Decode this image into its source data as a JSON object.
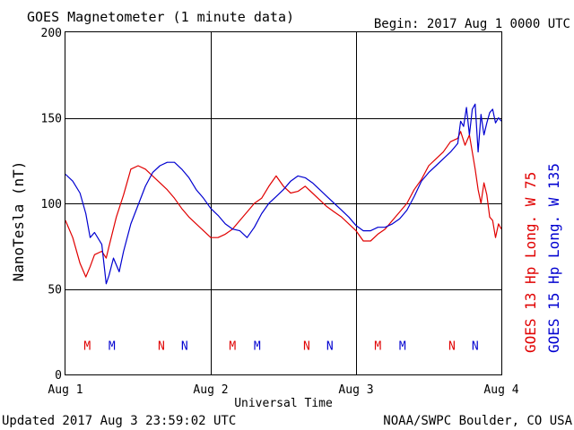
{
  "chart_data": {
    "type": "line",
    "title": "GOES Magnetometer (1 minute data)",
    "begin_label": "Begin:  2017 Aug 1 0000 UTC",
    "xlabel": "Universal Time",
    "ylabel": "NanoTesla (nT)",
    "footer_left": "Updated 2017 Aug  3 23:59:02 UTC",
    "footer_right": "NOAA/SWPC Boulder, CO USA",
    "ylim": [
      0,
      200
    ],
    "yticks": [
      0,
      50,
      100,
      150,
      200
    ],
    "xlim": [
      0,
      3
    ],
    "x_unit": "days since 2017 Aug 1 0000 UTC",
    "xtick_labels": [
      "Aug 1",
      "Aug 2",
      "Aug 3",
      "Aug 4"
    ],
    "grid": true,
    "series": [
      {
        "name": "GOES 13 Hp  Long. W 75",
        "color": "#e00000",
        "x": [
          0.0,
          0.05,
          0.1,
          0.14,
          0.17,
          0.2,
          0.25,
          0.28,
          0.3,
          0.35,
          0.4,
          0.45,
          0.5,
          0.55,
          0.6,
          0.65,
          0.7,
          0.75,
          0.8,
          0.85,
          0.9,
          0.95,
          1.0,
          1.05,
          1.1,
          1.15,
          1.2,
          1.25,
          1.3,
          1.35,
          1.4,
          1.45,
          1.5,
          1.55,
          1.6,
          1.65,
          1.7,
          1.75,
          1.8,
          1.85,
          1.9,
          1.95,
          2.0,
          2.05,
          2.1,
          2.15,
          2.2,
          2.25,
          2.3,
          2.35,
          2.4,
          2.45,
          2.5,
          2.55,
          2.6,
          2.65,
          2.7,
          2.72,
          2.75,
          2.78,
          2.8,
          2.82,
          2.84,
          2.86,
          2.88,
          2.9,
          2.92,
          2.94,
          2.96,
          2.98,
          3.0
        ],
        "values": [
          90,
          80,
          65,
          57,
          63,
          70,
          72,
          68,
          75,
          92,
          105,
          120,
          122,
          120,
          116,
          112,
          108,
          103,
          97,
          92,
          88,
          84,
          80,
          80,
          82,
          85,
          90,
          95,
          100,
          103,
          110,
          116,
          110,
          106,
          107,
          110,
          106,
          102,
          98,
          95,
          92,
          88,
          84,
          78,
          78,
          82,
          85,
          90,
          95,
          100,
          108,
          114,
          122,
          126,
          130,
          136,
          138,
          142,
          134,
          140,
          130,
          120,
          108,
          100,
          112,
          105,
          92,
          90,
          80,
          88,
          85
        ]
      },
      {
        "name": "GOES 15 Hp  Long. W 135",
        "color": "#0000d0",
        "x": [
          0.0,
          0.05,
          0.1,
          0.14,
          0.17,
          0.2,
          0.25,
          0.28,
          0.3,
          0.33,
          0.37,
          0.4,
          0.45,
          0.5,
          0.55,
          0.6,
          0.65,
          0.7,
          0.75,
          0.8,
          0.85,
          0.9,
          0.95,
          1.0,
          1.05,
          1.1,
          1.15,
          1.2,
          1.25,
          1.3,
          1.35,
          1.4,
          1.45,
          1.5,
          1.55,
          1.6,
          1.65,
          1.7,
          1.75,
          1.8,
          1.85,
          1.9,
          1.95,
          2.0,
          2.05,
          2.1,
          2.15,
          2.2,
          2.25,
          2.3,
          2.35,
          2.4,
          2.45,
          2.5,
          2.55,
          2.6,
          2.65,
          2.7,
          2.72,
          2.74,
          2.76,
          2.78,
          2.8,
          2.82,
          2.84,
          2.86,
          2.88,
          2.9,
          2.92,
          2.94,
          2.96,
          2.98,
          3.0
        ],
        "values": [
          117,
          113,
          106,
          94,
          80,
          83,
          76,
          53,
          58,
          68,
          60,
          72,
          88,
          99,
          110,
          118,
          122,
          124,
          124,
          120,
          115,
          108,
          103,
          97,
          93,
          88,
          85,
          84,
          80,
          86,
          94,
          100,
          104,
          108,
          113,
          116,
          115,
          112,
          108,
          104,
          100,
          96,
          92,
          87,
          84,
          84,
          86,
          86,
          88,
          91,
          96,
          104,
          113,
          118,
          122,
          126,
          130,
          135,
          148,
          145,
          156,
          140,
          155,
          158,
          130,
          152,
          140,
          147,
          153,
          155,
          147,
          150,
          148
        ]
      }
    ],
    "markers": [
      {
        "letter": "M",
        "x": 0.15,
        "color": "#e00000"
      },
      {
        "letter": "M",
        "x": 0.32,
        "color": "#0000d0"
      },
      {
        "letter": "N",
        "x": 0.66,
        "color": "#e00000"
      },
      {
        "letter": "N",
        "x": 0.82,
        "color": "#0000d0"
      },
      {
        "letter": "M",
        "x": 1.15,
        "color": "#e00000"
      },
      {
        "letter": "M",
        "x": 1.32,
        "color": "#0000d0"
      },
      {
        "letter": "N",
        "x": 1.66,
        "color": "#e00000"
      },
      {
        "letter": "N",
        "x": 1.82,
        "color": "#0000d0"
      },
      {
        "letter": "M",
        "x": 2.15,
        "color": "#e00000"
      },
      {
        "letter": "M",
        "x": 2.32,
        "color": "#0000d0"
      },
      {
        "letter": "N",
        "x": 2.66,
        "color": "#e00000"
      },
      {
        "letter": "N",
        "x": 2.82,
        "color": "#0000d0"
      }
    ],
    "marker_y": 17
  }
}
